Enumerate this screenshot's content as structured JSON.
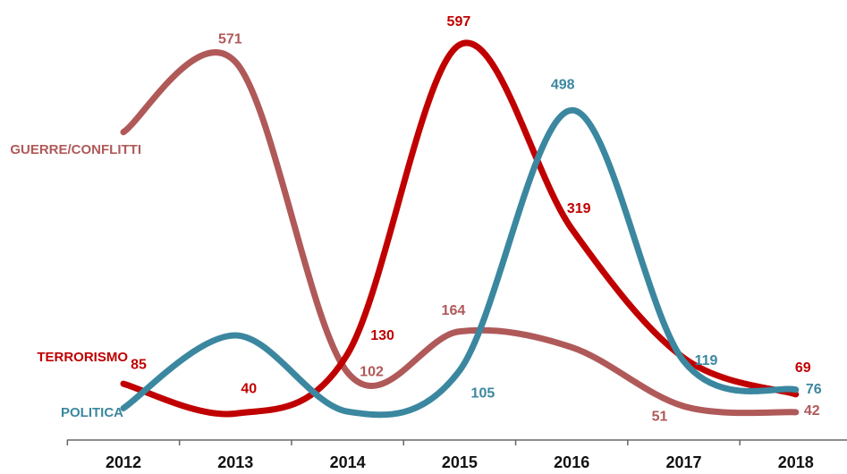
{
  "chart_data": {
    "type": "line",
    "categories": [
      "2012",
      "2013",
      "2014",
      "2015",
      "2016",
      "2017",
      "2018"
    ],
    "series": [
      {
        "name": "GUERRE/CONFLITTI",
        "color": "#b05959",
        "values": [
          465,
          571,
          102,
          164,
          140,
          51,
          42
        ],
        "value_labels": [
          null,
          "571",
          "102",
          "164",
          null,
          "51",
          "42"
        ]
      },
      {
        "name": "TERRORISMO",
        "color": "#c00000",
        "values": [
          85,
          40,
          130,
          597,
          319,
          124,
          69
        ],
        "value_labels": [
          "85",
          "40",
          "130",
          "597",
          "319",
          null,
          "69"
        ]
      },
      {
        "name": "POLITICA",
        "color": "#3b87a0",
        "values": [
          48,
          158,
          43,
          105,
          498,
          119,
          76
        ],
        "value_labels": [
          null,
          null,
          null,
          "105",
          "498",
          "119",
          "76"
        ]
      }
    ],
    "ylim": [
      0,
      620
    ]
  }
}
